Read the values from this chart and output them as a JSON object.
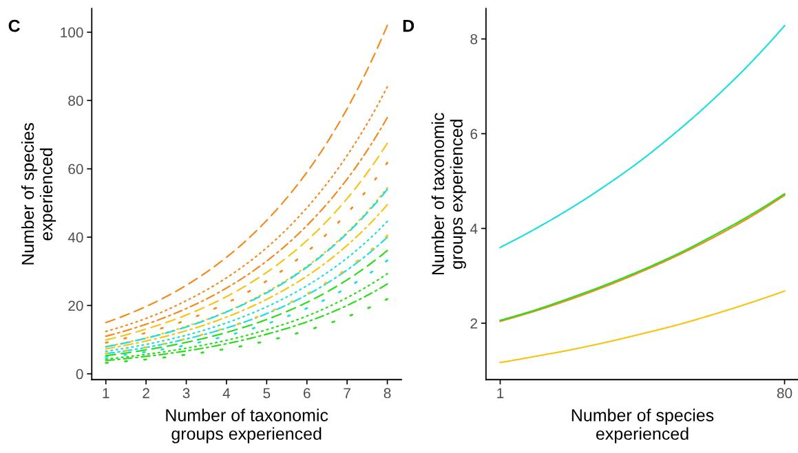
{
  "chart_data": [
    {
      "type": "line",
      "title": "C",
      "xlabel": "Number of taxonomic\ngroups experienced",
      "ylabel": "Number of species\nexperienced",
      "x": [
        1,
        2,
        3,
        4,
        5,
        6,
        7,
        8
      ],
      "xlim": [
        0.65,
        8.35
      ],
      "ylim": [
        -1.7,
        106.9
      ],
      "xticks": [
        1,
        2,
        3,
        4,
        5,
        6,
        7,
        8
      ],
      "yticks": [
        0,
        20,
        40,
        60,
        80,
        100
      ],
      "grid": false,
      "legend": false,
      "series": [
        {
          "color": "#f28c1e",
          "line_style": "dashed",
          "values": [
            15.0,
            19.7,
            25.9,
            34.1,
            44.9,
            59.0,
            77.6,
            102
          ]
        },
        {
          "color": "#f28c1e",
          "line_style": "dotted",
          "values": [
            12.4,
            16.2,
            21.4,
            28.1,
            36.9,
            48.6,
            63.9,
            84
          ]
        },
        {
          "color": "#f28c1e",
          "line_style": "dashdot",
          "values": [
            11.0,
            14.5,
            19.1,
            25.1,
            33.0,
            43.4,
            57.0,
            75
          ]
        },
        {
          "color": "#f28c1e",
          "line_style": "loosely dotted",
          "values": [
            9.1,
            12.0,
            15.7,
            20.7,
            27.2,
            35.7,
            47.0,
            61.8
          ]
        },
        {
          "color": "#f5c518",
          "line_style": "dashed",
          "values": [
            9.9,
            13.1,
            17.2,
            22.6,
            29.7,
            39.0,
            51.3,
            67.5
          ]
        },
        {
          "color": "#f5c518",
          "line_style": "dotted",
          "values": [
            8.0,
            10.5,
            13.9,
            18.2,
            24.0,
            31.5,
            41.4,
            54.5
          ]
        },
        {
          "color": "#f5c518",
          "line_style": "dashdot",
          "values": [
            7.3,
            9.6,
            12.6,
            16.6,
            21.8,
            28.6,
            37.6,
            49.5
          ]
        },
        {
          "color": "#f5c518",
          "line_style": "loosely dotted",
          "values": [
            6.0,
            7.8,
            10.3,
            13.5,
            17.8,
            23.4,
            30.8,
            40.5
          ]
        },
        {
          "color": "#1fdede",
          "line_style": "dashed",
          "values": [
            7.9,
            10.4,
            13.7,
            18.1,
            23.7,
            31.2,
            41.1,
            54
          ]
        },
        {
          "color": "#1fdede",
          "line_style": "dotted",
          "values": [
            6.6,
            8.6,
            11.3,
            14.9,
            19.6,
            25.8,
            33.9,
            44.6
          ]
        },
        {
          "color": "#1fdede",
          "line_style": "dashdot",
          "values": [
            5.9,
            7.7,
            10.2,
            13.4,
            17.6,
            23.1,
            30.4,
            40
          ]
        },
        {
          "color": "#1fdede",
          "line_style": "loosely dotted",
          "values": [
            4.9,
            6.4,
            8.4,
            11.1,
            14.6,
            19.2,
            25.2,
            33.2
          ]
        },
        {
          "color": "#2edb1f",
          "line_style": "dashed",
          "values": [
            5.3,
            7.0,
            9.2,
            12.1,
            15.9,
            20.9,
            27.5,
            36.1
          ]
        },
        {
          "color": "#2edb1f",
          "line_style": "dotted",
          "values": [
            4.3,
            5.7,
            7.5,
            9.8,
            12.9,
            16.9,
            22.3,
            29.3
          ]
        },
        {
          "color": "#2edb1f",
          "line_style": "dashdot",
          "values": [
            3.9,
            5.1,
            6.7,
            8.8,
            11.6,
            15.2,
            20.0,
            26.3
          ]
        },
        {
          "color": "#2edb1f",
          "line_style": "loosely dotted",
          "values": [
            3.2,
            4.2,
            5.6,
            7.3,
            9.6,
            12.7,
            16.7,
            21.9
          ]
        }
      ]
    },
    {
      "type": "line",
      "title": "D",
      "xlabel": "Number of species\nexperienced",
      "ylabel": "Number of taxonomic\ngroups experienced",
      "x": [
        1,
        10,
        20,
        30,
        40,
        50,
        60,
        70,
        80
      ],
      "xlim": [
        -2.95,
        83.95
      ],
      "ylim": [
        0.81,
        8.64
      ],
      "xticks": [
        1,
        80
      ],
      "yticks": [
        2,
        4,
        6,
        8
      ],
      "grid": false,
      "legend": false,
      "series": [
        {
          "color": "#1fdede",
          "line_style": "solid",
          "values": [
            3.6,
            3.96,
            4.4,
            4.89,
            5.43,
            6.04,
            6.71,
            7.45,
            8.28
          ]
        },
        {
          "color": "#f28c1e",
          "line_style": "solid",
          "values": [
            2.04,
            2.24,
            2.49,
            2.77,
            3.08,
            3.42,
            3.8,
            4.22,
            4.7
          ]
        },
        {
          "color": "#2edb1f",
          "line_style": "solid",
          "values": [
            2.06,
            2.26,
            2.52,
            2.8,
            3.11,
            3.45,
            3.84,
            4.26,
            4.73
          ]
        },
        {
          "color": "#f5c518",
          "line_style": "solid",
          "values": [
            1.17,
            1.29,
            1.43,
            1.59,
            1.77,
            1.96,
            2.18,
            2.42,
            2.68
          ]
        }
      ]
    }
  ]
}
